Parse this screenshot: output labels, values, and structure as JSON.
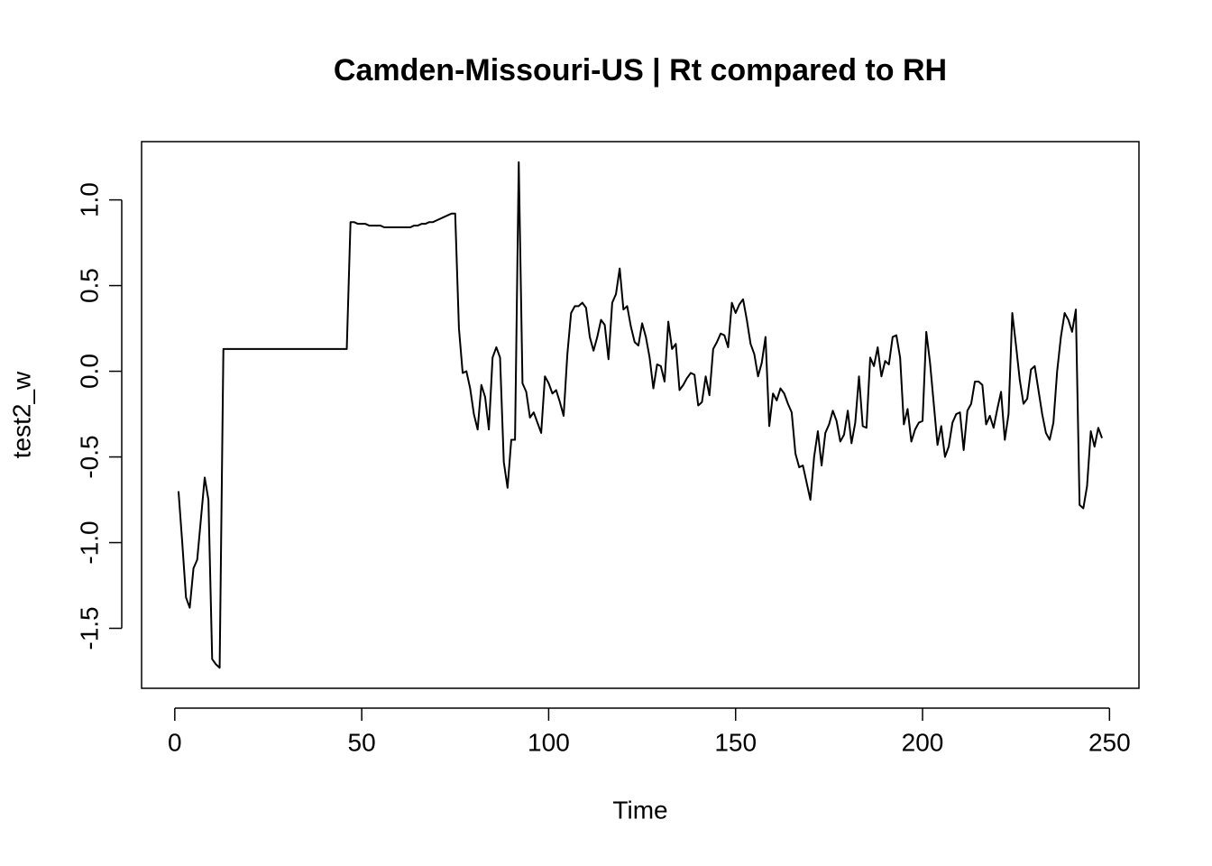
{
  "chart_data": {
    "type": "line",
    "title": "Camden-Missouri-US | Rt compared to RH",
    "xlabel": "Time",
    "ylabel": "test2_w",
    "color": "#000000",
    "xlim": [
      -8.88,
      257.88
    ],
    "ylim": [
      -1.85,
      1.34
    ],
    "xticks": [
      0,
      50,
      100,
      150,
      200,
      250
    ],
    "yticks": [
      {
        "value": -1.5,
        "label": "-1.5"
      },
      {
        "value": -1.0,
        "label": "-1.0"
      },
      -0.5,
      {
        "value": 0.0,
        "label": "0.0"
      },
      0.5,
      {
        "value": 1.0,
        "label": "1.0"
      }
    ],
    "x": [
      1,
      2,
      3,
      4,
      5,
      6,
      7,
      8,
      9,
      10,
      11,
      12,
      13,
      14,
      15,
      16,
      17,
      18,
      19,
      20,
      21,
      22,
      23,
      24,
      25,
      26,
      27,
      28,
      29,
      30,
      31,
      32,
      33,
      34,
      35,
      36,
      37,
      38,
      39,
      40,
      41,
      42,
      43,
      44,
      45,
      46,
      47,
      48,
      49,
      50,
      51,
      52,
      53,
      54,
      55,
      56,
      57,
      58,
      59,
      60,
      61,
      62,
      63,
      64,
      65,
      66,
      67,
      68,
      69,
      70,
      71,
      72,
      73,
      74,
      75,
      76,
      77,
      78,
      79,
      80,
      81,
      82,
      83,
      84,
      85,
      86,
      87,
      88,
      89,
      90,
      91,
      92,
      93,
      94,
      95,
      96,
      97,
      98,
      99,
      100,
      101,
      102,
      103,
      104,
      105,
      106,
      107,
      108,
      109,
      110,
      111,
      112,
      113,
      114,
      115,
      116,
      117,
      118,
      119,
      120,
      121,
      122,
      123,
      124,
      125,
      126,
      127,
      128,
      129,
      130,
      131,
      132,
      133,
      134,
      135,
      136,
      137,
      138,
      139,
      140,
      141,
      142,
      143,
      144,
      145,
      146,
      147,
      148,
      149,
      150,
      151,
      152,
      153,
      154,
      155,
      156,
      157,
      158,
      159,
      160,
      161,
      162,
      163,
      164,
      165,
      166,
      167,
      168,
      169,
      170,
      171,
      172,
      173,
      174,
      175,
      176,
      177,
      178,
      179,
      180,
      181,
      182,
      183,
      184,
      185,
      186,
      187,
      188,
      189,
      190,
      191,
      192,
      193,
      194,
      195,
      196,
      197,
      198,
      199,
      200,
      201,
      202,
      203,
      204,
      205,
      206,
      207,
      208,
      209,
      210,
      211,
      212,
      213,
      214,
      215,
      216,
      217,
      218,
      219,
      220,
      221,
      222,
      223,
      224,
      225,
      226,
      227,
      228,
      229,
      230,
      231,
      232,
      233,
      234,
      235,
      236,
      237,
      238,
      239,
      240,
      241,
      242,
      243,
      244,
      245,
      246,
      247,
      248
    ],
    "values": [
      -0.7,
      -1.0,
      -1.32,
      -1.38,
      -1.15,
      -1.1,
      -0.86,
      -0.62,
      -0.75,
      -1.68,
      -1.71,
      -1.73,
      0.13,
      0.13,
      0.13,
      0.13,
      0.13,
      0.13,
      0.13,
      0.13,
      0.13,
      0.13,
      0.13,
      0.13,
      0.13,
      0.13,
      0.13,
      0.13,
      0.13,
      0.13,
      0.13,
      0.13,
      0.13,
      0.13,
      0.13,
      0.13,
      0.13,
      0.13,
      0.13,
      0.13,
      0.13,
      0.13,
      0.13,
      0.13,
      0.13,
      0.13,
      0.87,
      0.87,
      0.86,
      0.86,
      0.86,
      0.85,
      0.85,
      0.85,
      0.85,
      0.84,
      0.84,
      0.84,
      0.84,
      0.84,
      0.84,
      0.84,
      0.84,
      0.85,
      0.85,
      0.86,
      0.86,
      0.87,
      0.87,
      0.88,
      0.89,
      0.9,
      0.91,
      0.92,
      0.92,
      0.25,
      -0.01,
      0.0,
      -0.1,
      -0.25,
      -0.34,
      -0.08,
      -0.15,
      -0.34,
      0.08,
      0.14,
      0.08,
      -0.53,
      -0.68,
      -0.4,
      -0.4,
      1.22,
      -0.07,
      -0.12,
      -0.27,
      -0.24,
      -0.3,
      -0.36,
      -0.03,
      -0.07,
      -0.13,
      -0.11,
      -0.18,
      -0.26,
      0.1,
      0.34,
      0.38,
      0.38,
      0.4,
      0.37,
      0.2,
      0.12,
      0.2,
      0.3,
      0.27,
      0.07,
      0.4,
      0.45,
      0.6,
      0.36,
      0.38,
      0.26,
      0.17,
      0.15,
      0.28,
      0.2,
      0.08,
      -0.1,
      0.04,
      0.03,
      -0.06,
      0.29,
      0.13,
      0.16,
      -0.11,
      -0.08,
      -0.04,
      -0.01,
      -0.02,
      -0.2,
      -0.18,
      -0.03,
      -0.14,
      0.13,
      0.17,
      0.22,
      0.21,
      0.14,
      0.4,
      0.34,
      0.39,
      0.42,
      0.3,
      0.16,
      0.1,
      -0.03,
      0.05,
      0.2,
      -0.32,
      -0.13,
      -0.17,
      -0.1,
      -0.13,
      -0.19,
      -0.24,
      -0.48,
      -0.56,
      -0.55,
      -0.65,
      -0.75,
      -0.5,
      -0.35,
      -0.55,
      -0.36,
      -0.31,
      -0.23,
      -0.29,
      -0.41,
      -0.37,
      -0.23,
      -0.42,
      -0.3,
      -0.03,
      -0.32,
      -0.33,
      0.08,
      0.03,
      0.14,
      -0.03,
      0.06,
      0.04,
      0.2,
      0.21,
      0.08,
      -0.31,
      -0.22,
      -0.41,
      -0.34,
      -0.3,
      -0.29,
      0.23,
      0.05,
      -0.19,
      -0.43,
      -0.32,
      -0.5,
      -0.44,
      -0.3,
      -0.25,
      -0.24,
      -0.46,
      -0.23,
      -0.19,
      -0.06,
      -0.06,
      -0.08,
      -0.31,
      -0.26,
      -0.33,
      -0.22,
      -0.12,
      -0.4,
      -0.25,
      0.34,
      0.15,
      -0.05,
      -0.19,
      -0.16,
      0.01,
      0.03,
      -0.11,
      -0.25,
      -0.36,
      -0.4,
      -0.3,
      0.0,
      0.2,
      0.34,
      0.3,
      0.23,
      0.36,
      -0.78,
      -0.8,
      -0.67,
      -0.35,
      -0.44,
      -0.33,
      -0.39
    ]
  }
}
